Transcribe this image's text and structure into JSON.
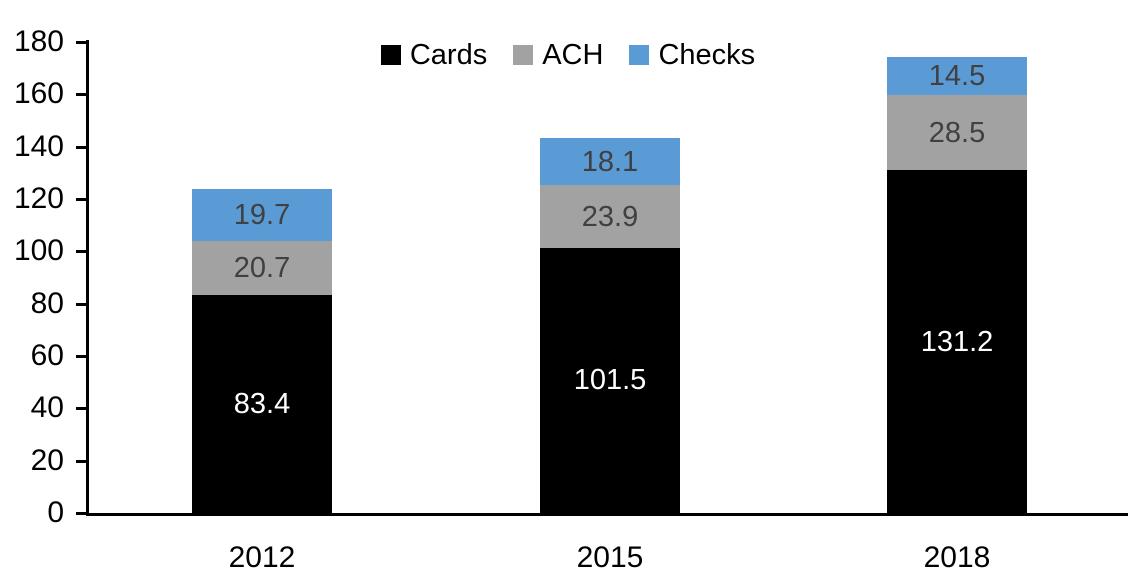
{
  "chart_data": {
    "type": "bar",
    "stacked": true,
    "title": "",
    "categories": [
      "2012",
      "2015",
      "2018"
    ],
    "series": [
      {
        "name": "Cards",
        "color": "#000000",
        "label_color": "#ffffff",
        "values": [
          83.4,
          101.5,
          131.2
        ]
      },
      {
        "name": "ACH",
        "color": "#a2a2a2",
        "label_color": "#404040",
        "values": [
          20.7,
          23.9,
          28.5
        ]
      },
      {
        "name": "Checks",
        "color": "#5b9bd5",
        "label_color": "#404040",
        "values": [
          19.7,
          18.1,
          14.5
        ]
      }
    ],
    "ylim": [
      0,
      180
    ],
    "yticks": [
      0,
      20,
      40,
      60,
      80,
      100,
      120,
      140,
      160,
      180
    ],
    "grid": false,
    "legend_position": "top-center",
    "axis_color": "#000000",
    "data_labels": true
  }
}
